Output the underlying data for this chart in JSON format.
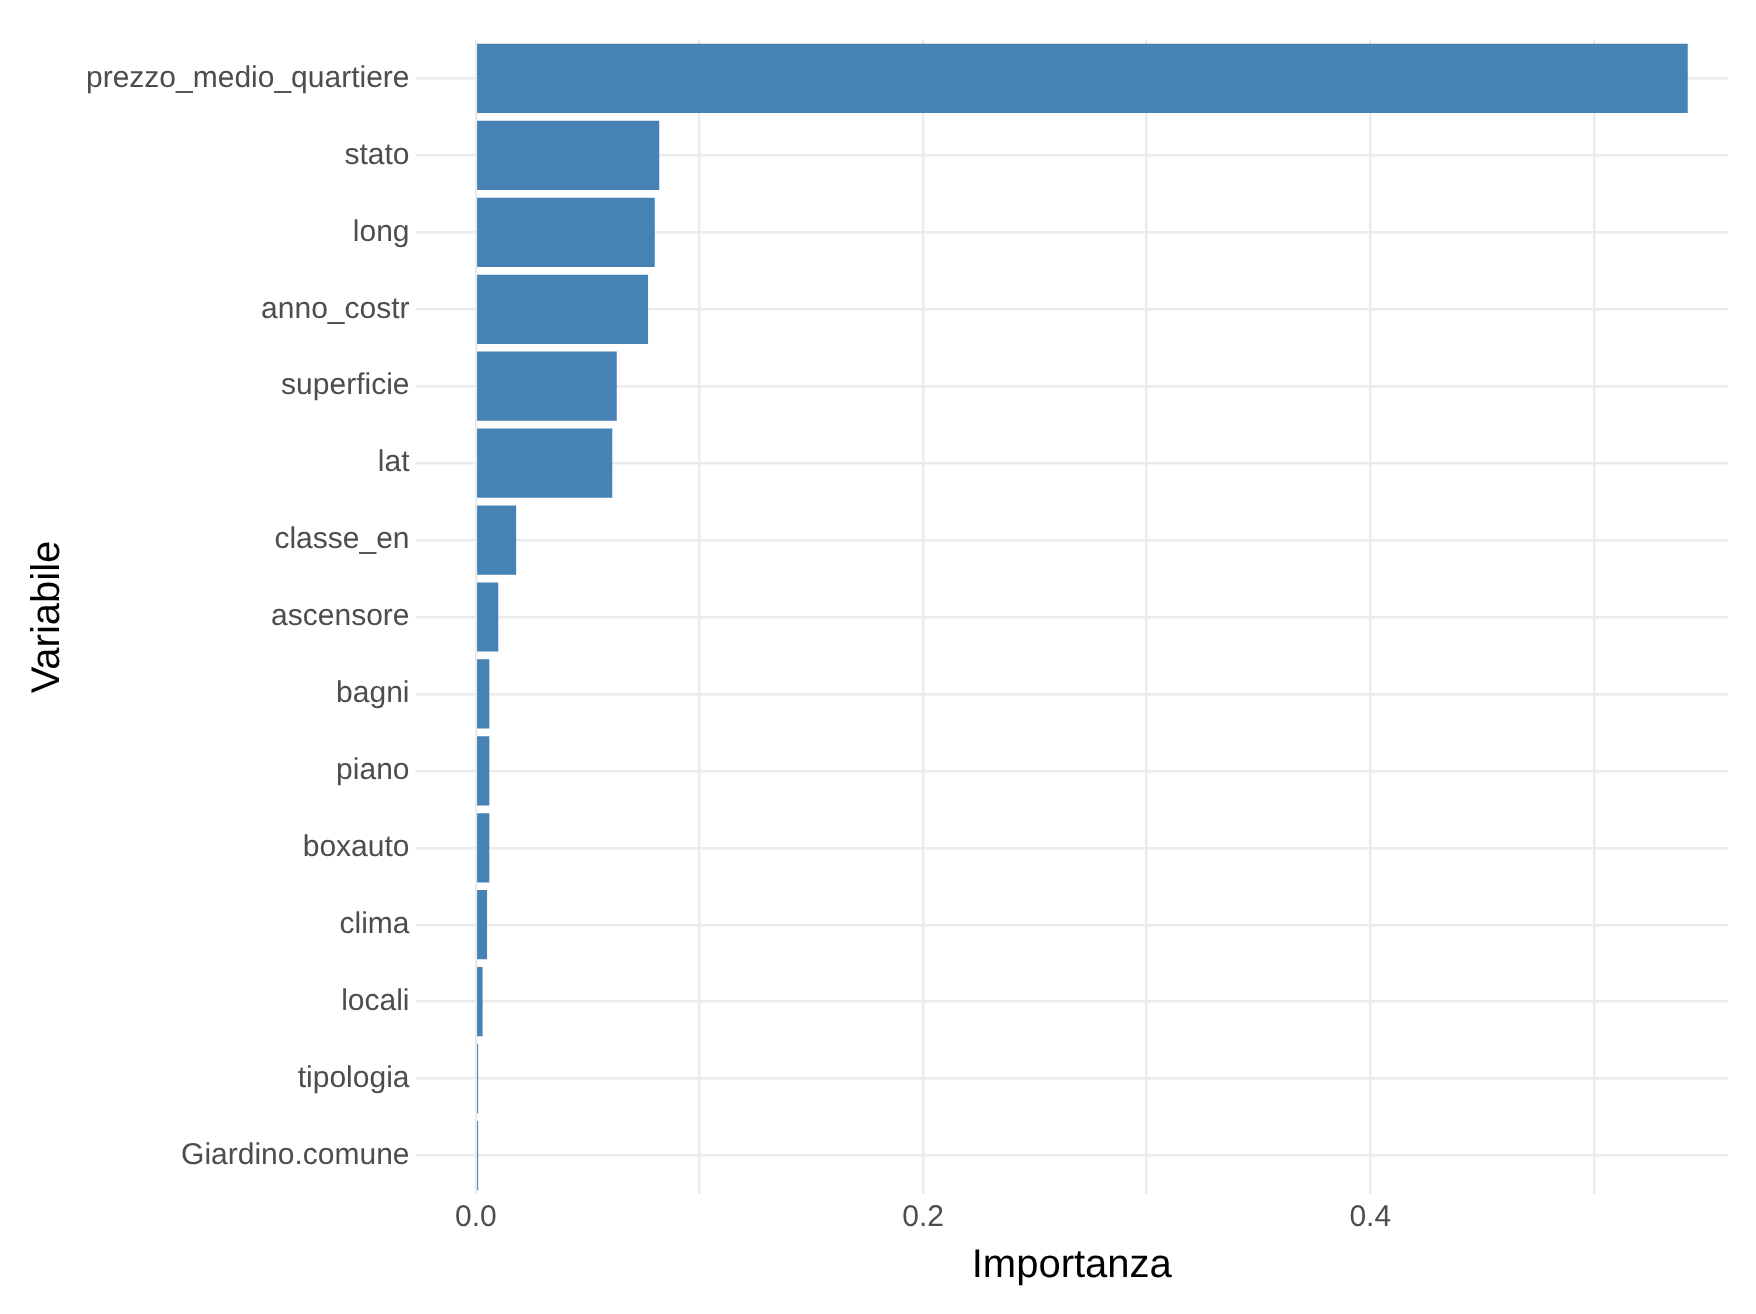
{
  "chart_data": {
    "type": "bar",
    "orientation": "horizontal",
    "xlabel": "Importanza",
    "ylabel": "Variabile",
    "categories": [
      "prezzo_medio_quartiere",
      "stato",
      "long",
      "anno_costr",
      "superficie",
      "lat",
      "classe_en",
      "ascensore",
      "bagni",
      "piano",
      "boxauto",
      "clima",
      "locali",
      "tipologia",
      "Giardino.comune"
    ],
    "values": [
      0.542,
      0.082,
      0.08,
      0.077,
      0.063,
      0.061,
      0.018,
      0.01,
      0.006,
      0.006,
      0.006,
      0.005,
      0.003,
      0.001,
      0.001
    ],
    "color": "#4682b4",
    "xlim": [
      -0.027,
      0.56
    ],
    "xticks": [
      {
        "value": 0,
        "label": "0.0"
      },
      {
        "value": 0.1,
        "label": null
      },
      {
        "value": 0.2,
        "label": "0.2"
      },
      {
        "value": 0.3,
        "label": null
      },
      {
        "value": 0.4,
        "label": "0.4"
      },
      {
        "value": 0.5,
        "label": null
      }
    ],
    "grid": true,
    "legend": false
  }
}
